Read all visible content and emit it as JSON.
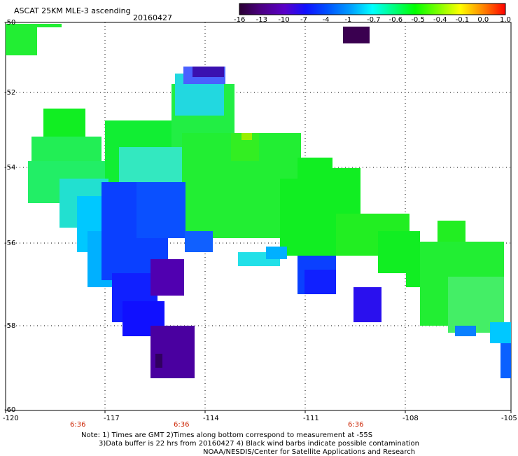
{
  "header": {
    "title": "ASCAT 25KM MLE-3 ascending",
    "date": "20160427"
  },
  "colorbar": {
    "labels": [
      "-16",
      "-13",
      "-10",
      "-7",
      "-4",
      "-1",
      "-0.7",
      "-0.6",
      "-0.5",
      "-0.4",
      "-0.1",
      "0.0",
      "1.0"
    ],
    "colors": [
      "#2a0033",
      "#4b0082",
      "#5a00c8",
      "#1010ff",
      "#0050ff",
      "#00a0ff",
      "#00ffff",
      "#00ff80",
      "#00ff00",
      "#80ff00",
      "#ffff00",
      "#ff8000",
      "#ff0000"
    ]
  },
  "map": {
    "lon_labels": [
      "-120",
      "-117",
      "-114",
      "-111",
      "-108",
      "-105"
    ],
    "lat_labels": [
      "-50",
      "-52",
      "-54",
      "-56",
      "-58",
      "-60"
    ],
    "time_labels": [
      "6:36",
      "6:36",
      "6:36"
    ]
  },
  "note": {
    "line1": "Note: 1) Times are GMT 2)Times along bottom correspond to measurement at -55S",
    "line2": "3)Data buffer is 22 hrs from 20160427 4) Black wind barbs indicate possible contamination",
    "line3": "NOAA/NESDIS/Center for Satellite Applications and Research"
  }
}
